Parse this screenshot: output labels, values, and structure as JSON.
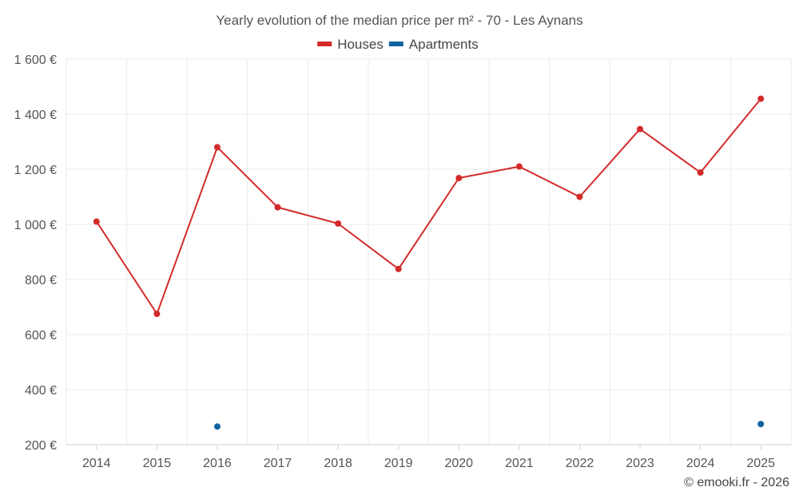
{
  "chart_data": {
    "type": "line",
    "title": "Yearly evolution of the median price per m² - 70 - Les Aynans",
    "categories": [
      "2014",
      "2015",
      "2016",
      "2017",
      "2018",
      "2019",
      "2020",
      "2021",
      "2022",
      "2023",
      "2024",
      "2025"
    ],
    "ylim": [
      200,
      1600
    ],
    "yticks": [
      200,
      400,
      600,
      800,
      1000,
      1200,
      1400,
      1600
    ],
    "ytick_labels": [
      "200 €",
      "400 €",
      "600 €",
      "800 €",
      "1 000 €",
      "1 200 €",
      "1 400 €",
      "1 600 €"
    ],
    "grid": true,
    "legend_position": "top-center",
    "series": [
      {
        "name": "Houses",
        "color": "#d42a2a",
        "mode": "line+markers",
        "values": [
          1010,
          675,
          1280,
          1062,
          1003,
          838,
          1168,
          1210,
          1100,
          1346,
          1188,
          1456
        ]
      },
      {
        "name": "Apartments",
        "color": "#10639e",
        "mode": "markers",
        "values": [
          null,
          null,
          266,
          null,
          null,
          null,
          null,
          null,
          null,
          null,
          null,
          275
        ]
      }
    ]
  },
  "credit": "© emooki.fr - 2026"
}
